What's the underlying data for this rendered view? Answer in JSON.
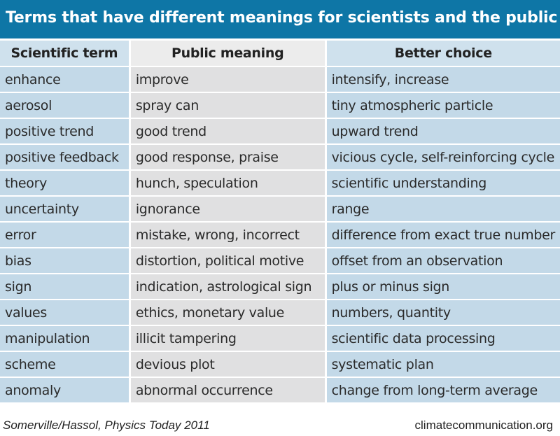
{
  "title": "Terms that have different meanings for scientists and the public",
  "headers": [
    "Scientific term",
    "Public meaning",
    "Better choice"
  ],
  "rows": [
    [
      "enhance",
      "improve",
      "intensify, increase"
    ],
    [
      "aerosol",
      "spray can",
      "tiny atmospheric particle"
    ],
    [
      "positive trend",
      "good trend",
      "upward trend"
    ],
    [
      "positive feedback",
      "good response, praise",
      "vicious cycle, self-reinforcing cycle"
    ],
    [
      "theory",
      "hunch, speculation",
      "scientific understanding"
    ],
    [
      "uncertainty",
      "ignorance",
      "range"
    ],
    [
      "error",
      "mistake, wrong, incorrect",
      "difference from exact true number"
    ],
    [
      "bias",
      "distortion, political motive",
      "offset from an observation"
    ],
    [
      "sign",
      "indication, astrological sign",
      "plus or minus sign"
    ],
    [
      "values",
      "ethics, monetary value",
      "numbers, quantity"
    ],
    [
      "manipulation",
      "illicit tampering",
      "scientific data processing"
    ],
    [
      "scheme",
      "devious plot",
      "systematic plan"
    ],
    [
      "anomaly",
      "abnormal occurrence",
      "change from long-term average"
    ]
  ],
  "footer": {
    "credit": "Somerville/Hassol, Physics Today 2011",
    "source": "climatecommunication.org"
  },
  "colors": {
    "title_bar": "#0e76a6",
    "blue_cell": "#c3d9e8",
    "gray_cell": "#e0e0e1"
  }
}
